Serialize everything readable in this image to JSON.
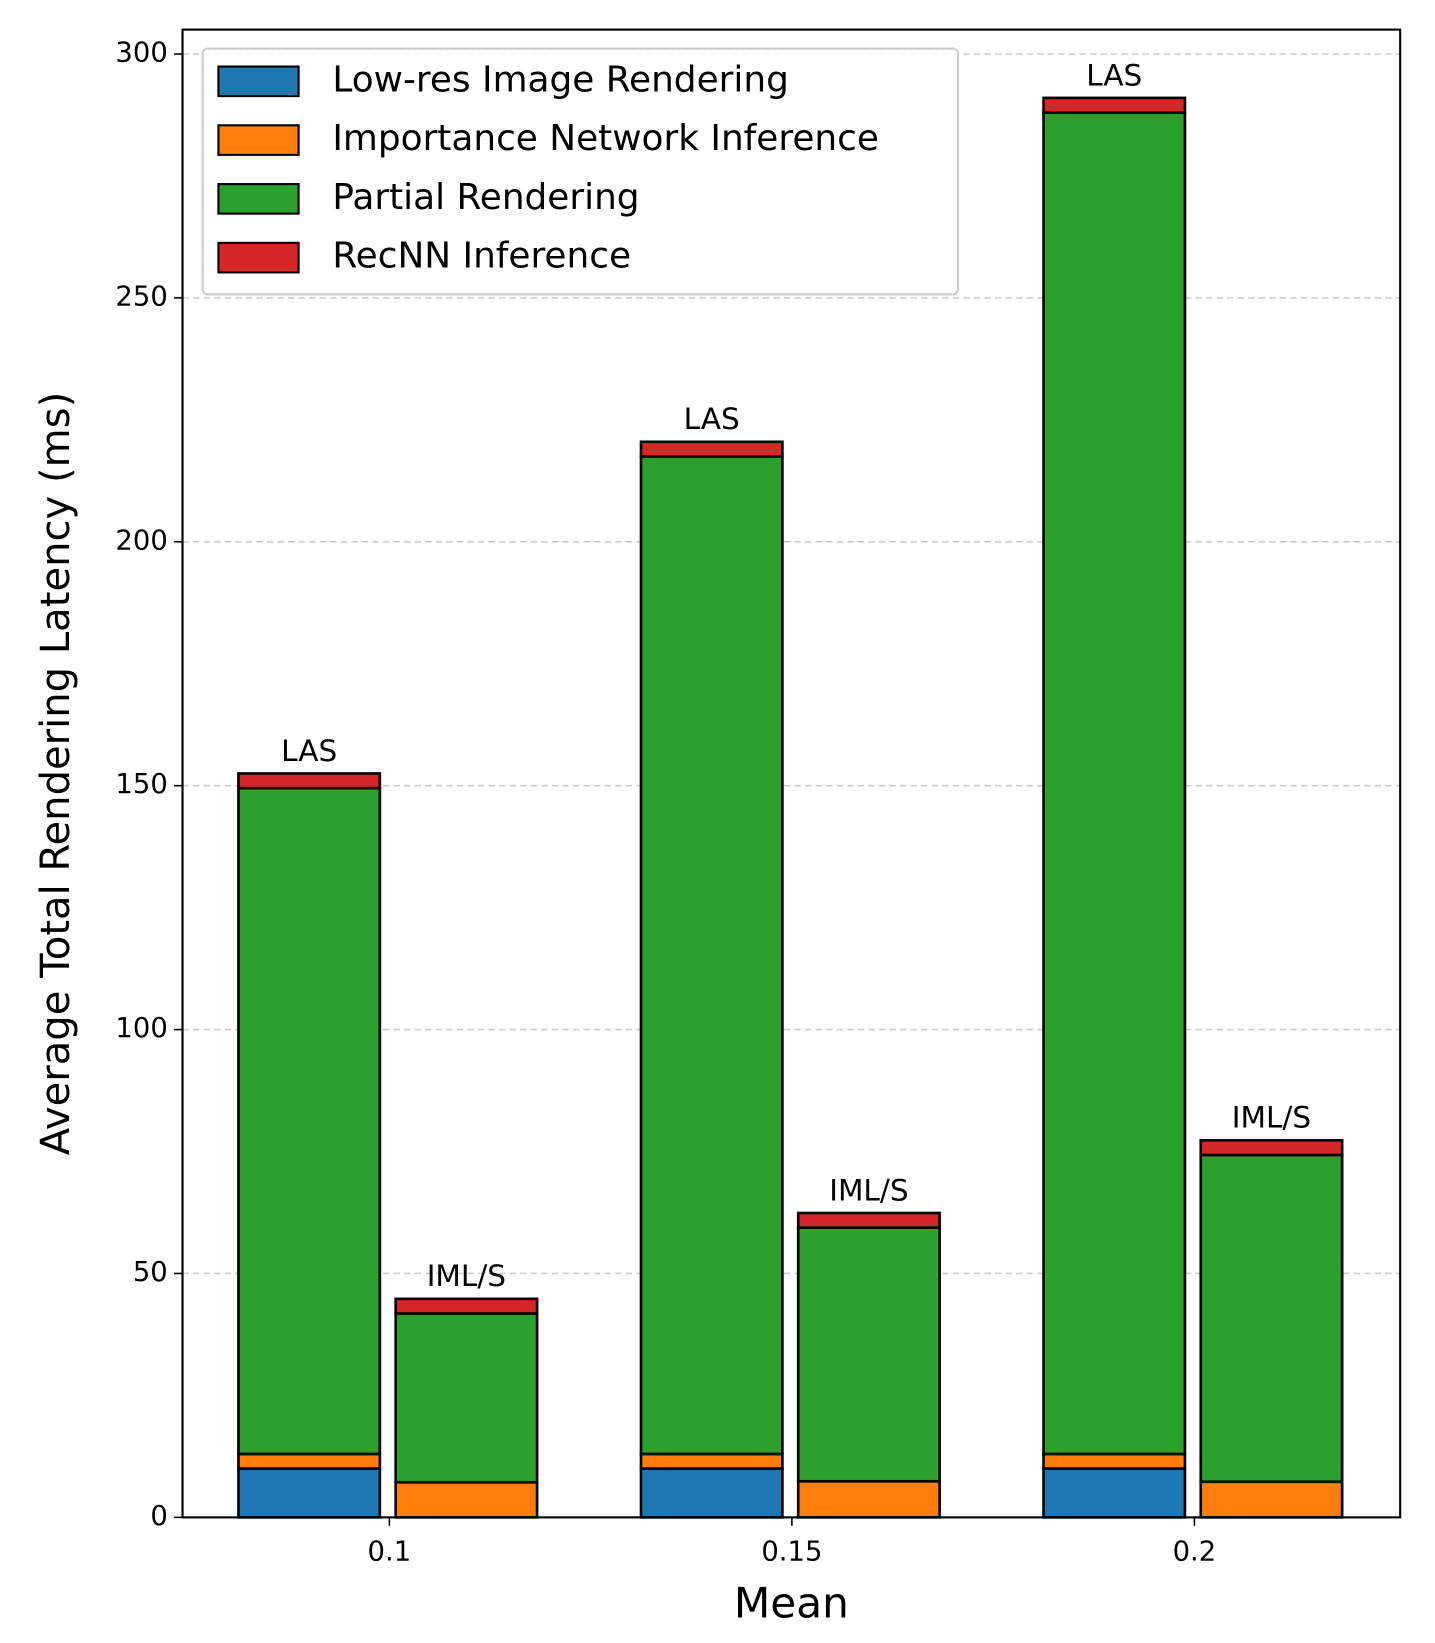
{
  "chart_data": {
    "type": "grouped_stacked_bar",
    "x_label": "Mean",
    "y_label": "Average Total Rendering Latency (ms)",
    "categories": [
      "0.1",
      "0.15",
      "0.2"
    ],
    "groups": [
      "LAS",
      "IML/S"
    ],
    "series": [
      {
        "name": "Low-res Image Rendering",
        "color": "#1f77b4",
        "values": [
          [
            10,
            0
          ],
          [
            10,
            0
          ],
          [
            10,
            0
          ]
        ]
      },
      {
        "name": "Importance Network Inference",
        "color": "#ff7f0e",
        "values": [
          [
            3,
            7.2
          ],
          [
            3,
            7.4
          ],
          [
            3,
            7.3
          ]
        ]
      },
      {
        "name": "Partial Rendering",
        "color": "#2ca02c",
        "values": [
          [
            136.5,
            34.6
          ],
          [
            204.5,
            52
          ],
          [
            275,
            67
          ]
        ]
      },
      {
        "name": "RecNN Inference",
        "color": "#d62728",
        "values": [
          [
            3,
            3
          ],
          [
            3,
            3
          ],
          [
            3,
            3
          ]
        ]
      }
    ],
    "ylim": [
      0,
      305
    ],
    "yticks": [
      0,
      50,
      100,
      150,
      200,
      250,
      300
    ],
    "grid": true,
    "legend": "upper left"
  }
}
